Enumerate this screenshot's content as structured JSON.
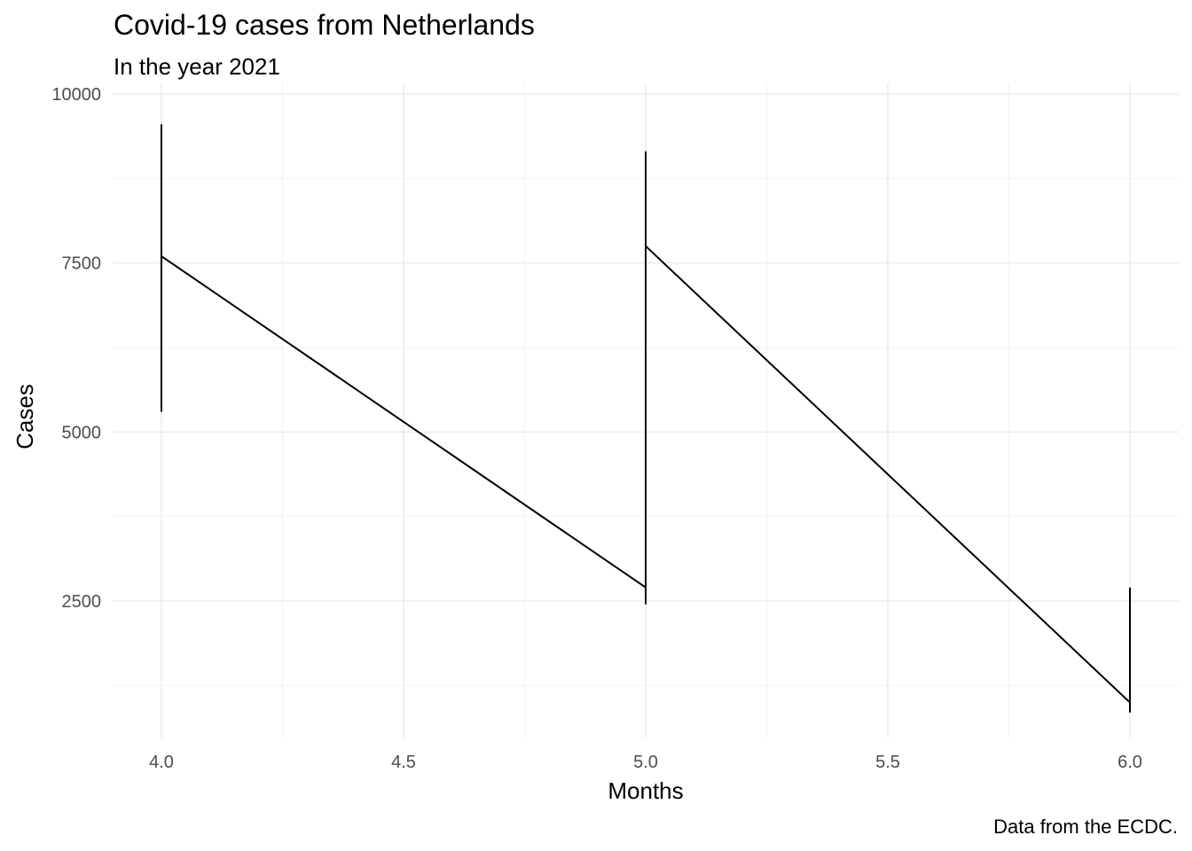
{
  "chart_data": {
    "type": "line",
    "title": "Covid-19 cases from Netherlands",
    "subtitle": "In the year 2021",
    "caption": "Data from the ECDC.",
    "xlabel": "Months",
    "ylabel": "Cases",
    "xlim": [
      3.9,
      6.1
    ],
    "ylim": [
      500,
      10000
    ],
    "x_ticks": [
      4.0,
      4.5,
      5.0,
      5.5,
      6.0
    ],
    "x_tick_labels": [
      "4.0",
      "4.5",
      "5.0",
      "5.5",
      "6.0"
    ],
    "y_ticks": [
      2500,
      5000,
      7500,
      10000
    ],
    "y_tick_labels": [
      "2500",
      "5000",
      "7500",
      "10000"
    ],
    "grid": true,
    "line_color": "#000000",
    "series": [
      {
        "x": [
          4.0,
          4.0,
          4.0,
          5.0,
          5.0,
          5.0,
          5.0,
          6.0,
          6.0,
          6.0
        ],
        "y": [
          9550,
          5300,
          7600,
          2700,
          2450,
          9150,
          7750,
          1000,
          850,
          2700
        ]
      }
    ]
  }
}
